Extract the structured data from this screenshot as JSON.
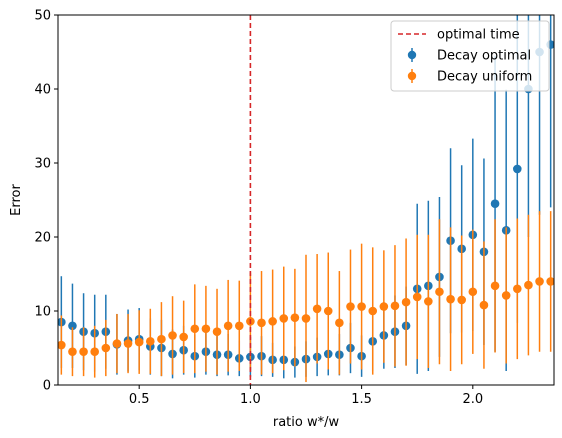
{
  "chart_data": {
    "type": "scatter",
    "title": "",
    "xlabel": "ratio w*/w",
    "ylabel": "Error",
    "xlim": [
      0.135,
      2.365
    ],
    "ylim": [
      0,
      50
    ],
    "xticks": [
      0.5,
      1.0,
      1.5,
      2.0
    ],
    "xtick_labels": [
      "0.5",
      "1.0",
      "1.5",
      "2.0"
    ],
    "yticks": [
      0,
      10,
      20,
      30,
      40,
      50
    ],
    "ytick_labels": [
      "0",
      "10",
      "20",
      "30",
      "40",
      "50"
    ],
    "grid": false,
    "legend_position": "top-right",
    "vline": {
      "x": 1.0,
      "label": "optimal time",
      "color": "#d62728",
      "style": "dashed"
    },
    "x": [
      0.15,
      0.2,
      0.25,
      0.3,
      0.35,
      0.4,
      0.45,
      0.5,
      0.55,
      0.6,
      0.65,
      0.7,
      0.75,
      0.8,
      0.85,
      0.9,
      0.95,
      1.0,
      1.05,
      1.1,
      1.15,
      1.2,
      1.25,
      1.3,
      1.35,
      1.4,
      1.45,
      1.5,
      1.55,
      1.6,
      1.65,
      1.7,
      1.75,
      1.8,
      1.85,
      1.9,
      1.95,
      2.0,
      2.05,
      2.1,
      2.15,
      2.2,
      2.25,
      2.3,
      2.35
    ],
    "series": [
      {
        "name": "Decay optimal",
        "color": "#1f77b4",
        "values": [
          8.5,
          8.0,
          7.2,
          7.0,
          7.2,
          5.5,
          6.0,
          6.2,
          5.2,
          5.0,
          4.2,
          4.7,
          3.9,
          4.5,
          4.1,
          4.1,
          3.6,
          3.8,
          3.9,
          3.4,
          3.4,
          3.1,
          3.5,
          3.8,
          4.2,
          4.1,
          5.0,
          3.9,
          5.9,
          6.7,
          7.2,
          8.0,
          13.0,
          13.4,
          14.6,
          19.5,
          18.4,
          20.3,
          18.0,
          24.5,
          20.9,
          29.2,
          40.0,
          45.0,
          46.0
        ],
        "errors": [
          6.2,
          5.7,
          5.2,
          5.2,
          5.0,
          4.1,
          4.2,
          4.2,
          3.8,
          3.8,
          3.3,
          3.3,
          2.9,
          3.1,
          2.9,
          2.8,
          2.4,
          2.7,
          2.7,
          2.3,
          2.5,
          2.1,
          2.4,
          2.6,
          2.9,
          2.8,
          3.4,
          2.8,
          4.0,
          4.5,
          4.9,
          5.3,
          11.5,
          11.5,
          10.8,
          12.5,
          11.3,
          13.0,
          12.6,
          20.0,
          19.0,
          20.8,
          20.0,
          22.0,
          22.0
        ]
      },
      {
        "name": "Decay uniform",
        "color": "#ff7f0e",
        "values": [
          5.4,
          4.5,
          4.5,
          4.5,
          5.0,
          5.6,
          5.6,
          5.8,
          5.9,
          6.2,
          6.7,
          6.5,
          7.6,
          7.6,
          7.2,
          8.0,
          8.0,
          8.6,
          8.4,
          8.6,
          9.0,
          9.1,
          9.0,
          10.3,
          10.0,
          8.4,
          10.6,
          10.6,
          10.0,
          10.6,
          10.7,
          11.2,
          11.9,
          11.3,
          12.6,
          11.6,
          11.5,
          12.6,
          10.8,
          13.4,
          12.1,
          13.0,
          13.5,
          14.0,
          14.0
        ],
        "errors": [
          4.0,
          3.3,
          3.3,
          3.5,
          3.8,
          4.0,
          4.0,
          4.3,
          4.4,
          5.0,
          5.3,
          4.9,
          6.0,
          5.8,
          5.8,
          6.2,
          6.1,
          6.6,
          7.0,
          7.0,
          7.0,
          6.6,
          8.6,
          7.4,
          7.9,
          7.0,
          7.7,
          8.5,
          8.6,
          7.6,
          8.2,
          8.6,
          8.4,
          9.0,
          9.8,
          9.7,
          8.7,
          8.4,
          8.6,
          9.0,
          9.2,
          9.5,
          9.5,
          9.5,
          9.5
        ]
      }
    ]
  }
}
